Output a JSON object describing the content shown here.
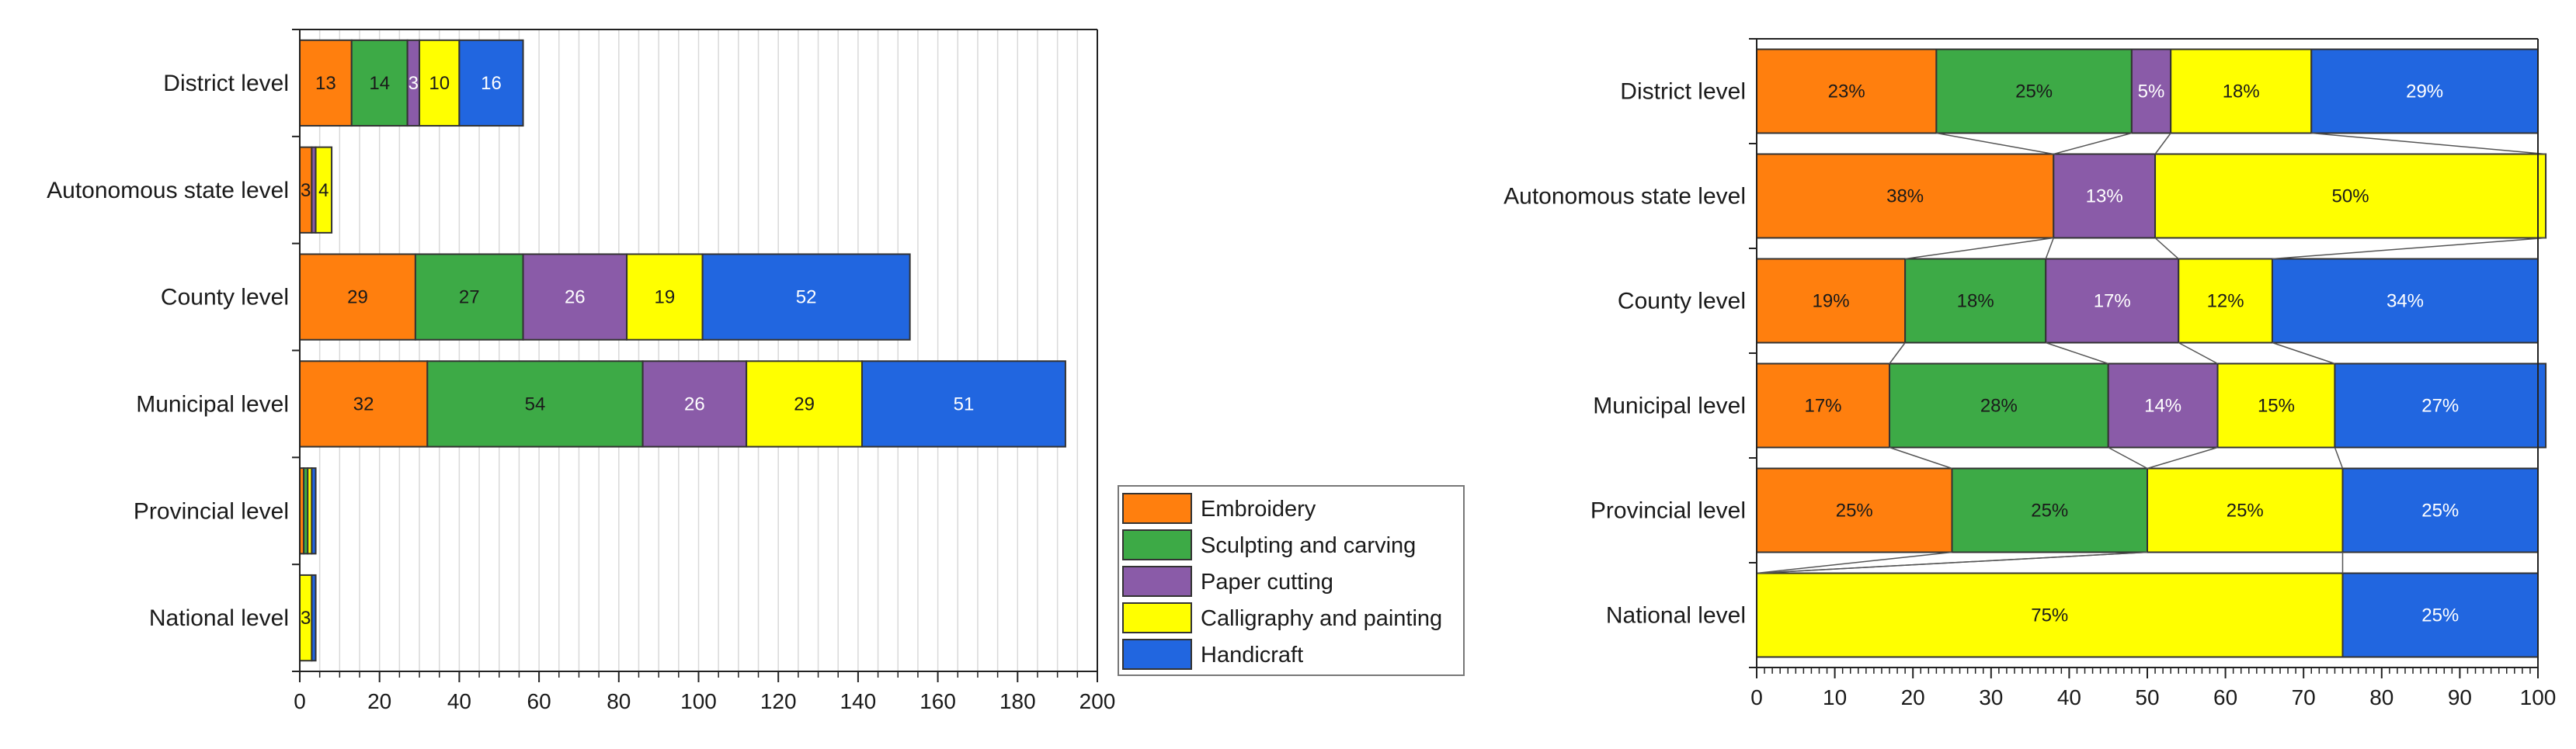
{
  "colors": {
    "Embroidery": "#ff7f0e",
    "Sculpting and carving": "#3daa46",
    "Paper cutting": "#8a5ba8",
    "Calligraphy and painting": "#ffff00",
    "Handicraft": "#2166e0"
  },
  "legend": [
    "Embroidery",
    "Sculpting and carving",
    "Paper cutting",
    "Calligraphy and painting",
    "Handicraft"
  ],
  "chart_data": [
    {
      "type": "bar",
      "orientation": "horizontal",
      "stacked": true,
      "categories": [
        "District level",
        "Autonomous state level",
        "County level",
        "Municipal level",
        "Provincial level",
        "National level"
      ],
      "series": [
        {
          "name": "Embroidery",
          "values": [
            13,
            3,
            29,
            32,
            1,
            0
          ]
        },
        {
          "name": "Sculpting and carving",
          "values": [
            14,
            0,
            27,
            54,
            1,
            0
          ]
        },
        {
          "name": "Paper cutting",
          "values": [
            3,
            1,
            26,
            26,
            0,
            0
          ]
        },
        {
          "name": "Calligraphy and painting",
          "values": [
            10,
            4,
            19,
            29,
            1,
            3
          ]
        },
        {
          "name": "Handicraft",
          "values": [
            16,
            0,
            52,
            51,
            1,
            1
          ]
        }
      ],
      "data_labels": [
        [
          "13",
          "3",
          "29",
          "32",
          "",
          ""
        ],
        [
          "14",
          "",
          "27",
          "54",
          "",
          ""
        ],
        [
          "3",
          "",
          "26",
          "26",
          "",
          ""
        ],
        [
          "10",
          "4",
          "19",
          "29",
          "",
          "3"
        ],
        [
          "16",
          "",
          "52",
          "51",
          "",
          ""
        ]
      ],
      "xlim": [
        0,
        200
      ],
      "xticks": [
        "0",
        "20",
        "40",
        "60",
        "80",
        "100",
        "120",
        "140",
        "160",
        "180",
        "200"
      ],
      "grid": "vertical minor",
      "legend_placement": "lower-right outside"
    },
    {
      "type": "bar",
      "orientation": "horizontal",
      "stacked": true,
      "percent": true,
      "categories": [
        "District level",
        "Autonomous state level",
        "County level",
        "Municipal level",
        "Provincial level",
        "National level"
      ],
      "series": [
        {
          "name": "Embroidery",
          "values": [
            23,
            38,
            19,
            17,
            25,
            0
          ]
        },
        {
          "name": "Sculpting and carving",
          "values": [
            25,
            0,
            18,
            28,
            25,
            0
          ]
        },
        {
          "name": "Paper cutting",
          "values": [
            5,
            13,
            17,
            14,
            0,
            0
          ]
        },
        {
          "name": "Calligraphy and painting",
          "values": [
            18,
            50,
            12,
            15,
            25,
            75
          ]
        },
        {
          "name": "Handicraft",
          "values": [
            29,
            0,
            34,
            27,
            25,
            25
          ]
        }
      ],
      "data_labels": [
        [
          "23%",
          "38%",
          "19%",
          "17%",
          "25%",
          ""
        ],
        [
          "25%",
          "",
          "18%",
          "28%",
          "25%",
          ""
        ],
        [
          "5%",
          "13%",
          "17%",
          "14%",
          "",
          ""
        ],
        [
          "18%",
          "50%",
          "12%",
          "15%",
          "25%",
          "75%"
        ],
        [
          "29%",
          "",
          "34%",
          "27%",
          "25%",
          "25%"
        ]
      ],
      "xlim": [
        0,
        100
      ],
      "xticks": [
        "0",
        "10",
        "20",
        "30",
        "40",
        "50",
        "60",
        "70",
        "80",
        "90",
        "100"
      ],
      "grid": false,
      "series_lines": true
    }
  ]
}
